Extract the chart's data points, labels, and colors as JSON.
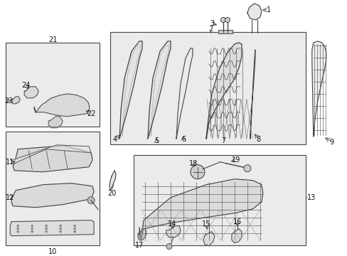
{
  "bg_color": "#ffffff",
  "line_color": "#444444",
  "box_bg": "#ebebeb",
  "fig_w": 4.89,
  "fig_h": 3.6,
  "dpi": 100
}
